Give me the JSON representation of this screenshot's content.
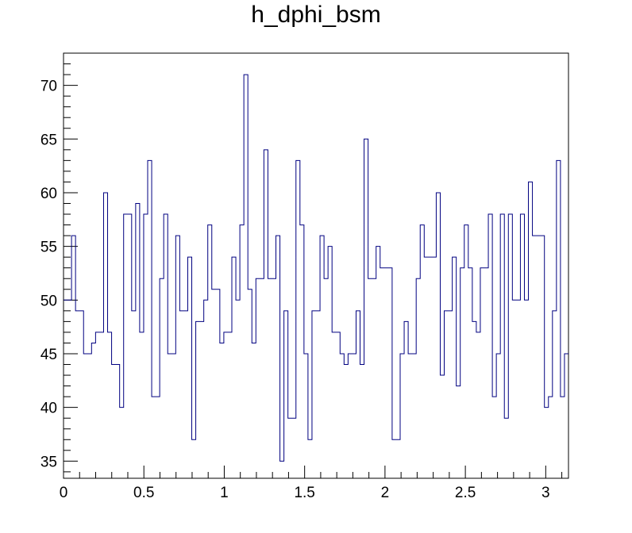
{
  "chart_data": {
    "type": "histogram",
    "title": "h_dphi_bsm",
    "xlabel": "",
    "ylabel": "",
    "xlim": [
      0,
      3.14159
    ],
    "ylim": [
      33.4,
      73
    ],
    "x_ticks": [
      0,
      0.5,
      1,
      1.5,
      2,
      2.5,
      3
    ],
    "x_tick_labels": [
      "0",
      "0.5",
      "1",
      "1.5",
      "2",
      "2.5",
      "3"
    ],
    "y_ticks": [
      35,
      40,
      45,
      50,
      55,
      60,
      65,
      70
    ],
    "y_tick_labels": [
      "35",
      "40",
      "45",
      "50",
      "55",
      "60",
      "65",
      "70"
    ],
    "bins": 126,
    "bin_range": [
      0,
      3.14159
    ],
    "values": [
      50,
      50,
      56,
      49,
      49,
      45,
      45,
      46,
      47,
      47,
      60,
      47,
      44,
      44,
      40,
      58,
      58,
      49,
      59,
      47,
      58,
      63,
      41,
      41,
      52,
      58,
      45,
      45,
      56,
      49,
      49,
      54,
      37,
      48,
      48,
      50,
      57,
      51,
      51,
      46,
      47,
      47,
      54,
      50,
      57,
      71,
      51,
      46,
      52,
      52,
      64,
      52,
      52,
      56,
      35,
      49,
      39,
      39,
      63,
      57,
      45,
      37,
      49,
      49,
      56,
      52,
      55,
      47,
      47,
      45,
      44,
      45,
      45,
      49,
      44,
      65,
      52,
      52,
      55,
      53,
      53,
      53,
      37,
      37,
      45,
      48,
      45,
      45,
      52,
      57,
      54,
      54,
      54,
      60,
      43,
      49,
      49,
      54,
      42,
      53,
      57,
      53,
      48,
      47,
      53,
      53,
      58,
      41,
      45,
      58,
      39,
      58,
      50,
      50,
      58,
      50,
      61,
      56,
      56,
      56,
      40,
      41,
      49,
      63,
      41,
      45
    ],
    "line_color": "#000080",
    "grid": false,
    "legend": "none"
  }
}
